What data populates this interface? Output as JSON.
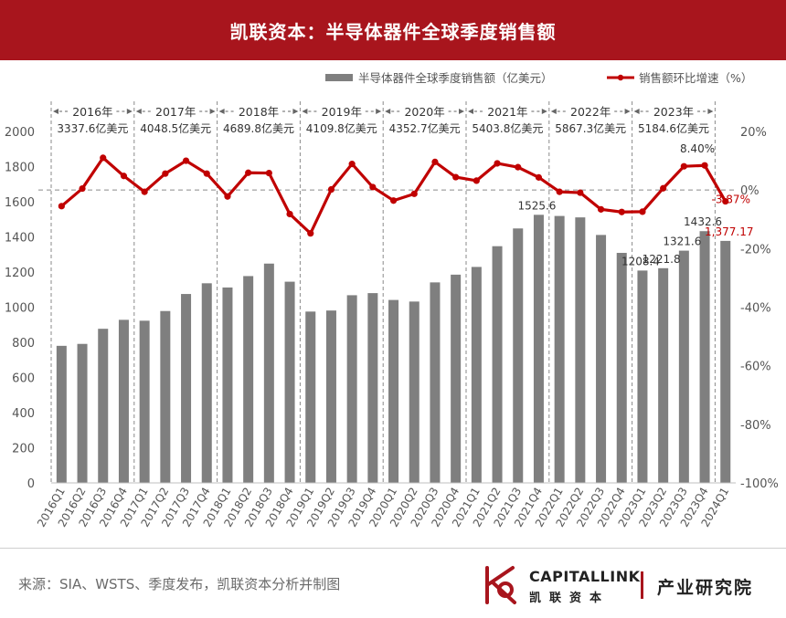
{
  "title": "凯联资本：半导体器件全球季度销售额",
  "source": "来源：SIA、WSTS、季度发布，凯联资本分析并制图",
  "brand": {
    "name_en": "CAPITALLINK",
    "name_cn": "凯联资本",
    "department": "产业研究院"
  },
  "colors": {
    "accent": "#a8151d",
    "bar": "#7f7f7f",
    "line": "#c00000",
    "guide": "#8a8a8a"
  },
  "chart_data": {
    "type": "bar+line",
    "categories": [
      "2016Q1",
      "2016Q2",
      "2016Q3",
      "2016Q4",
      "2017Q1",
      "2017Q2",
      "2017Q3",
      "2017Q4",
      "2018Q1",
      "2018Q2",
      "2018Q3",
      "2018Q4",
      "2019Q1",
      "2019Q2",
      "2019Q3",
      "2019Q4",
      "2020Q1",
      "2020Q2",
      "2020Q3",
      "2020Q4",
      "2021Q1",
      "2021Q2",
      "2021Q3",
      "2021Q4",
      "2022Q1",
      "2022Q2",
      "2022Q3",
      "2022Q4",
      "2023Q1",
      "2023Q2",
      "2023Q3",
      "2023Q4",
      "2024Q1"
    ],
    "legend": {
      "bar_label": "半导体器件全球季度销售额（亿美元）",
      "line_label": "销售额环比增速（%）",
      "position": "top"
    },
    "series": [
      {
        "name": "半导体器件全球季度销售额（亿美元）",
        "type": "bar",
        "axis": "left",
        "values": [
          780,
          791,
          877,
          928,
          923,
          978,
          1075,
          1136,
          1112,
          1177,
          1248,
          1145,
          975,
          981,
          1068,
          1080,
          1041,
          1032,
          1141,
          1185,
          1229,
          1347,
          1448,
          1525.6,
          1519,
          1511,
          1411,
          1309,
          1208.4,
          1221.8,
          1321.6,
          1432.6,
          1377.17
        ]
      },
      {
        "name": "销售额环比增速（%）",
        "type": "line",
        "axis": "right",
        "values": [
          -5.5,
          0.5,
          11,
          4.8,
          -0.6,
          5.6,
          10,
          5.6,
          -2.2,
          5.9,
          5.8,
          -8.2,
          -14.8,
          0.2,
          8.9,
          1,
          -3.6,
          -1.3,
          9.6,
          4.4,
          3.2,
          9.1,
          7.8,
          4.3,
          -0.6,
          -0.9,
          -6.6,
          -7.5,
          -7.4,
          0.6,
          8.1,
          8.4,
          -3.87
        ]
      }
    ],
    "y_left": {
      "min": 0,
      "max": 2000,
      "ticks": [
        "0",
        "200",
        "400",
        "600",
        "800",
        "1000",
        "1200",
        "1400",
        "1600",
        "1800",
        "2000"
      ]
    },
    "y_right": {
      "min": -100,
      "max": 20,
      "ticks": [
        "-100%",
        "-80%",
        "-60%",
        "-40%",
        "-20%",
        "0%",
        "20%"
      ]
    },
    "bar_labels": [
      {
        "index": 23,
        "text": "1525.6"
      },
      {
        "index": 28,
        "text": "1208.4"
      },
      {
        "index": 29,
        "text": "1221.8"
      },
      {
        "index": 30,
        "text": "1321.6"
      },
      {
        "index": 31,
        "text": "1432.6"
      },
      {
        "index": 32,
        "text": "1,377.17"
      }
    ],
    "line_labels": [
      {
        "index": 31,
        "text": "8.40%"
      },
      {
        "index": 32,
        "text": "-3.87%"
      }
    ],
    "years": [
      {
        "label": "2016年",
        "total": "3337.6亿美元",
        "start": 0,
        "end": 3
      },
      {
        "label": "2017年",
        "total": "4048.5亿美元",
        "start": 4,
        "end": 7
      },
      {
        "label": "2018年",
        "total": "4689.8亿美元",
        "start": 8,
        "end": 11
      },
      {
        "label": "2019年",
        "total": "4109.8亿美元",
        "start": 12,
        "end": 15
      },
      {
        "label": "2020年",
        "total": "4352.7亿美元",
        "start": 16,
        "end": 19
      },
      {
        "label": "2021年",
        "total": "5403.8亿美元",
        "start": 20,
        "end": 23
      },
      {
        "label": "2022年",
        "total": "5867.3亿美元",
        "start": 24,
        "end": 27
      },
      {
        "label": "2023年",
        "total": "5184.6亿美元",
        "start": 28,
        "end": 31
      }
    ]
  }
}
